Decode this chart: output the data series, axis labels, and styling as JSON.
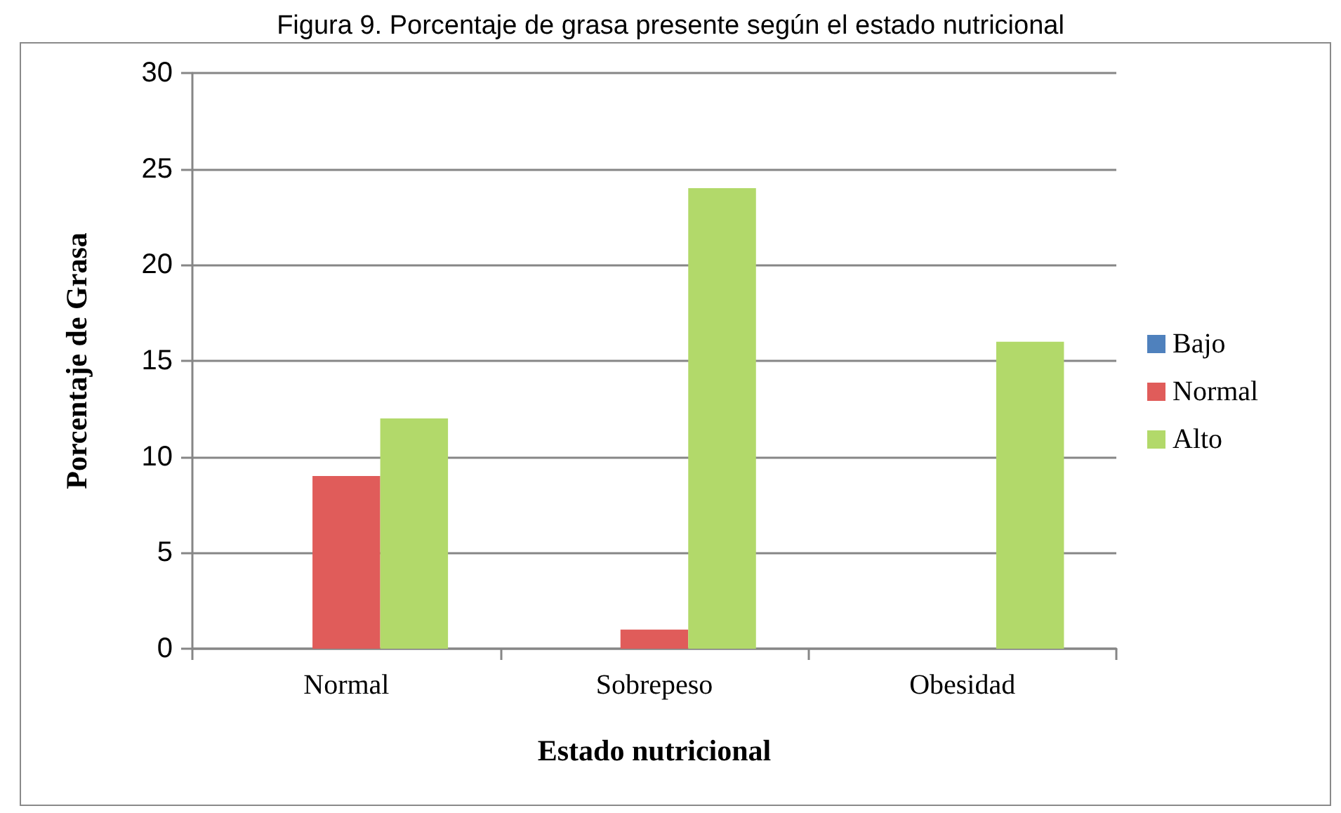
{
  "chart_data": {
    "type": "bar",
    "title": "Figura 9. Porcentaje de grasa presente según el estado nutricional",
    "xlabel": "Estado nutricional",
    "ylabel": "Porcentaje de Grasa",
    "categories": [
      "Normal",
      "Sobrepeso",
      "Obesidad"
    ],
    "series": [
      {
        "name": "Bajo",
        "color": "#4f81bd",
        "values": [
          null,
          null,
          null
        ]
      },
      {
        "name": "Normal",
        "color": "#e05c5a",
        "values": [
          9,
          1,
          null
        ]
      },
      {
        "name": "Alto",
        "color": "#b2d96a",
        "values": [
          12,
          24,
          16
        ]
      }
    ],
    "ylim": [
      0,
      30
    ],
    "yticks": [
      0,
      5,
      10,
      15,
      20,
      25,
      30
    ],
    "grid": "y",
    "legend": "right"
  }
}
